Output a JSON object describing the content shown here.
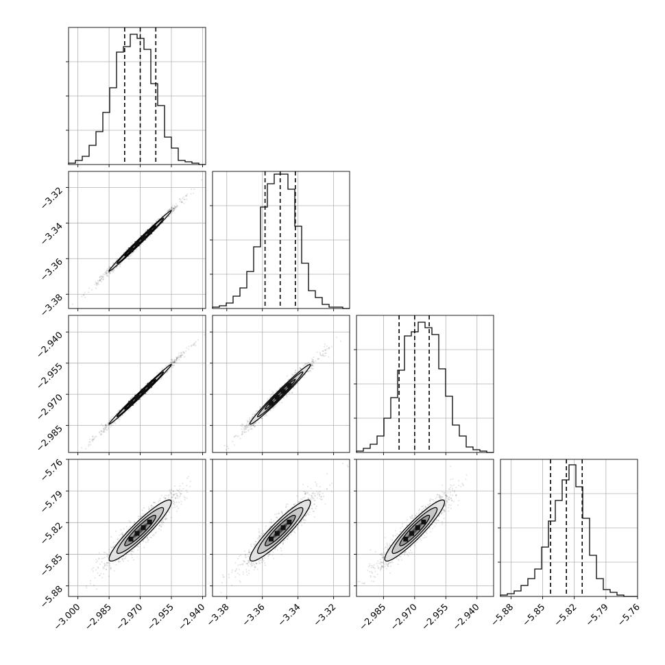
{
  "chart_data": {
    "type": "corner",
    "grid": true,
    "params": [
      {
        "range": [
          -3.0045,
          -2.9385
        ],
        "ticks": [
          "−3.000",
          "−2.985",
          "−2.970",
          "−2.955",
          "−2.940"
        ],
        "tick_values": [
          -3.0,
          -2.985,
          -2.97,
          -2.955,
          -2.94
        ],
        "quantiles": [
          -2.9775,
          -2.97,
          -2.9625
        ],
        "hist_bins": [
          -3.0045,
          -3.0012,
          -2.9979,
          -2.9946,
          -2.9913,
          -2.988,
          -2.9847,
          -2.9814,
          -2.9781,
          -2.9748,
          -2.9715,
          -2.9682,
          -2.9649,
          -2.9616,
          -2.9583,
          -2.955,
          -2.9517,
          -2.9484,
          -2.9451,
          -2.9418,
          -2.9385
        ],
        "hist_counts": [
          0.01,
          0.03,
          0.06,
          0.14,
          0.24,
          0.38,
          0.56,
          0.82,
          0.86,
          0.95,
          0.92,
          0.84,
          0.59,
          0.43,
          0.2,
          0.12,
          0.03,
          0.02,
          0.01,
          0.0
        ]
      },
      {
        "range": [
          -3.388,
          -3.311
        ],
        "ticks": [
          "−3.38",
          "−3.36",
          "−3.34",
          "−3.32"
        ],
        "tick_values": [
          -3.38,
          -3.36,
          -3.34,
          -3.32
        ],
        "quantiles": [
          -3.3585,
          -3.35,
          -3.3415
        ],
        "hist_bins": [
          -3.388,
          -3.38415,
          -3.3803,
          -3.37645,
          -3.3726,
          -3.36875,
          -3.3649,
          -3.36105,
          -3.3572,
          -3.35335,
          -3.3495,
          -3.34565,
          -3.3418,
          -3.33795,
          -3.3341,
          -3.33025,
          -3.3264,
          -3.32255,
          -3.3187,
          -3.31485,
          -3.311
        ],
        "hist_counts": [
          0.01,
          0.02,
          0.04,
          0.09,
          0.15,
          0.27,
          0.45,
          0.74,
          0.91,
          0.98,
          0.98,
          0.87,
          0.6,
          0.33,
          0.13,
          0.08,
          0.03,
          0.01,
          0.01,
          0.0
        ]
      },
      {
        "range": [
          -2.998,
          -2.932
        ],
        "ticks": [
          "−2.985",
          "−2.970",
          "−2.955",
          "−2.940"
        ],
        "tick_values": [
          -2.985,
          -2.97,
          -2.955,
          -2.94
        ],
        "quantiles": [
          -2.9775,
          -2.97,
          -2.963
        ],
        "hist_bins": [
          -2.998,
          -2.9947,
          -2.9914,
          -2.9881,
          -2.9848,
          -2.9815,
          -2.9782,
          -2.9749,
          -2.9716,
          -2.9683,
          -2.965,
          -2.9617,
          -2.9584,
          -2.9551,
          -2.9518,
          -2.9485,
          -2.9452,
          -2.9419,
          -2.9386,
          -2.9353,
          -2.932
        ],
        "hist_counts": [
          0.01,
          0.03,
          0.06,
          0.12,
          0.25,
          0.4,
          0.6,
          0.85,
          0.88,
          0.95,
          0.91,
          0.86,
          0.61,
          0.41,
          0.2,
          0.12,
          0.04,
          0.02,
          0.01,
          0.0
        ]
      },
      {
        "range": [
          -5.89,
          -5.76
        ],
        "ticks": [
          "−5.88",
          "−5.85",
          "−5.82",
          "−5.79",
          "−5.76"
        ],
        "tick_values": [
          -5.88,
          -5.85,
          -5.82,
          -5.79,
          -5.76
        ],
        "quantiles": [
          -5.8425,
          -5.8275,
          -5.8125
        ],
        "hist_bins": [
          -5.89,
          -5.8835,
          -5.877,
          -5.8705,
          -5.864,
          -5.8575,
          -5.851,
          -5.8445,
          -5.838,
          -5.8315,
          -5.825,
          -5.8185,
          -5.812,
          -5.8055,
          -5.799,
          -5.7925,
          -5.786,
          -5.7795,
          -5.773,
          -5.7665,
          -5.76
        ],
        "hist_counts": [
          0.01,
          0.02,
          0.04,
          0.08,
          0.13,
          0.2,
          0.36,
          0.55,
          0.7,
          0.85,
          0.96,
          0.8,
          0.57,
          0.3,
          0.13,
          0.05,
          0.03,
          0.01,
          0.0,
          0.0
        ]
      }
    ]
  }
}
